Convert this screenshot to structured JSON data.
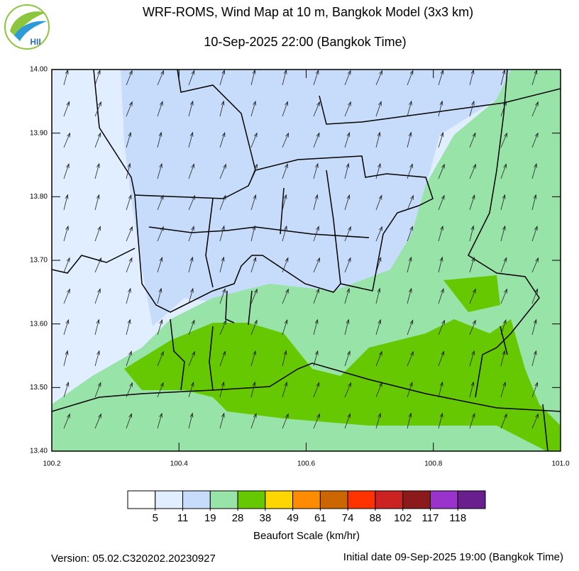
{
  "header": {
    "title": "WRF-ROMS, Wind Map at 10 m, Bangkok Model (3x3 km)",
    "subtitle": "10-Sep-2025 22:00 (Bangkok Time)",
    "logo_text": "HII"
  },
  "map": {
    "xlim": [
      100.2,
      101.0
    ],
    "ylim": [
      13.4,
      14.0
    ],
    "xticks": [
      100.2,
      100.4,
      100.6,
      100.8,
      {
        "value": 101.0,
        "label": "101.0"
      }
    ],
    "yticks": [
      {
        "value": 14.0,
        "label": "14.00"
      },
      {
        "value": 13.9,
        "label": "13.90"
      },
      {
        "value": 13.8,
        "label": "13.80"
      },
      {
        "value": 13.7,
        "label": "13.70"
      },
      {
        "value": 13.6,
        "label": "13.60"
      },
      {
        "value": 13.5,
        "label": "13.50"
      },
      {
        "value": 13.4,
        "label": "13.40"
      }
    ]
  },
  "colorbar": {
    "title": "Beaufort Scale (km/hr)",
    "colors": [
      "#ffffff",
      "#e0eeff",
      "#c6dcfa",
      "#98e4a8",
      "#66c800",
      "#ffd700",
      "#ff8c00",
      "#cc6600",
      "#ff3300",
      "#cc2222",
      "#8b1a1a",
      "#9933cc",
      "#6a1f8f"
    ],
    "thresholds": [
      5,
      11,
      19,
      28,
      38,
      49,
      61,
      74,
      88,
      102,
      117,
      118
    ]
  },
  "footer": {
    "version": "Version: 05.02.C320202.20230927",
    "initial": "Initial date 09-Sep-2025 19:00 (Bangkok Time)"
  }
}
